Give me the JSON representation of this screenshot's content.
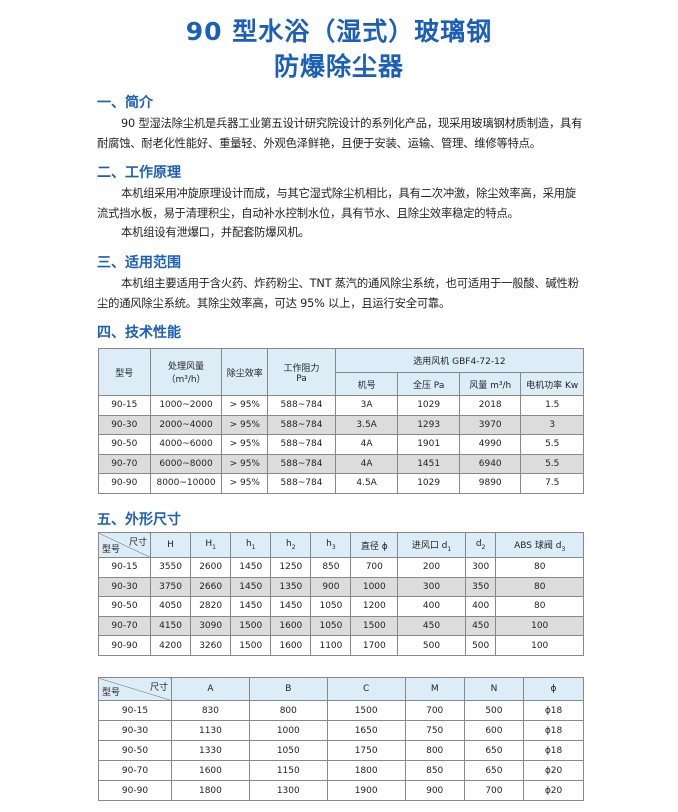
{
  "title": {
    "line1": "90 型水浴（湿式）玻璃钢",
    "line2": "防爆除尘器"
  },
  "sections": [
    {
      "heading": "一、简介",
      "paragraphs": [
        "90 型湿法除尘机是兵器工业第五设计研究院设计的系列化产品，现采用玻璃钢材质制造，具有耐腐蚀、耐老化性能好、重量轻、外观色泽鲜艳，且便于安装、运输、管理、维修等特点。"
      ]
    },
    {
      "heading": "二、工作原理",
      "paragraphs": [
        "本机组采用冲旋原理设计而成，与其它湿式除尘机相比，具有二次冲激，除尘效率高，采用旋流式挡水板，易于清理积尘，自动补水控制水位，具有节水、且除尘效率稳定的特点。",
        "本机组设有泄爆口，并配套防爆风机。"
      ]
    },
    {
      "heading": "三、适用范围",
      "paragraphs": [
        "本机组主要适用于含火药、炸药粉尘、TNT 蒸汽的通风除尘系统，也可适用于一般酸、碱性粉尘的通风除尘系统。其除尘效率高，可达 95% 以上，且运行安全可靠。"
      ]
    },
    {
      "heading": "四、技术性能"
    },
    {
      "heading": "五、外形尺寸"
    }
  ],
  "table1": {
    "headers": [
      "型号",
      "处理风量",
      "（m³/h）",
      "除尘效率",
      "工作阻力",
      "Pa",
      "选用风机 GBF4-72-12",
      "机号",
      "全压 Pa",
      "风量 m³/h",
      "电机功率 Kw"
    ],
    "rows": [
      [
        "90-15",
        "1000~2000",
        "> 95%",
        "588~784",
        "3A",
        "1029",
        "2018",
        "1.5"
      ],
      [
        "90-30",
        "2000~4000",
        "> 95%",
        "588~784",
        "3.5A",
        "1293",
        "3970",
        "3"
      ],
      [
        "90-50",
        "4000~6000",
        "> 95%",
        "588~784",
        "4A",
        "1901",
        "4990",
        "5.5"
      ],
      [
        "90-70",
        "6000~8000",
        "> 95%",
        "588~784",
        "4A",
        "1451",
        "6940",
        "5.5"
      ],
      [
        "90-90",
        "8000~10000",
        "> 95%",
        "588~784",
        "4.5A",
        "1029",
        "9890",
        "7.5"
      ]
    ]
  },
  "table2": {
    "corner": {
      "top": "尺寸",
      "bottom": "型号"
    },
    "headers": [
      {
        "t": "H",
        "s": ""
      },
      {
        "t": "H",
        "s": "1"
      },
      {
        "t": "h",
        "s": "1"
      },
      {
        "t": "h",
        "s": "2"
      },
      {
        "t": "h",
        "s": "3"
      },
      {
        "t": "直径 ϕ",
        "s": ""
      },
      {
        "t": "进风口 d",
        "s": "1"
      },
      {
        "t": "d",
        "s": "2"
      },
      {
        "t": "ABS 球阀 d",
        "s": "3"
      }
    ],
    "rows": [
      [
        "90-15",
        "3550",
        "2600",
        "1450",
        "1250",
        "850",
        "700",
        "200",
        "300",
        "80"
      ],
      [
        "90-30",
        "3750",
        "2660",
        "1450",
        "1350",
        "900",
        "1000",
        "300",
        "350",
        "80"
      ],
      [
        "90-50",
        "4050",
        "2820",
        "1450",
        "1450",
        "1050",
        "1200",
        "400",
        "400",
        "80"
      ],
      [
        "90-70",
        "4150",
        "3090",
        "1500",
        "1600",
        "1050",
        "1500",
        "450",
        "450",
        "100"
      ],
      [
        "90-90",
        "4200",
        "3260",
        "1500",
        "1600",
        "1100",
        "1700",
        "500",
        "500",
        "100"
      ]
    ]
  },
  "table3": {
    "corner": {
      "top": "尺寸",
      "bottom": "型号"
    },
    "headers": [
      "A",
      "B",
      "C",
      "M",
      "N",
      "ϕ"
    ],
    "rows": [
      [
        "90-15",
        "830",
        "800",
        "1500",
        "700",
        "500",
        "ϕ18"
      ],
      [
        "90-30",
        "1130",
        "1000",
        "1650",
        "750",
        "600",
        "ϕ18"
      ],
      [
        "90-50",
        "1330",
        "1050",
        "1750",
        "800",
        "650",
        "ϕ18"
      ],
      [
        "90-70",
        "1600",
        "1150",
        "1800",
        "850",
        "650",
        "ϕ20"
      ],
      [
        "90-90",
        "1800",
        "1300",
        "1900",
        "900",
        "700",
        "ϕ20"
      ]
    ]
  },
  "colors": {
    "accent": "#1c5fb8",
    "header_bg": "#dcedf8",
    "stripe": "#dcdcdc"
  }
}
